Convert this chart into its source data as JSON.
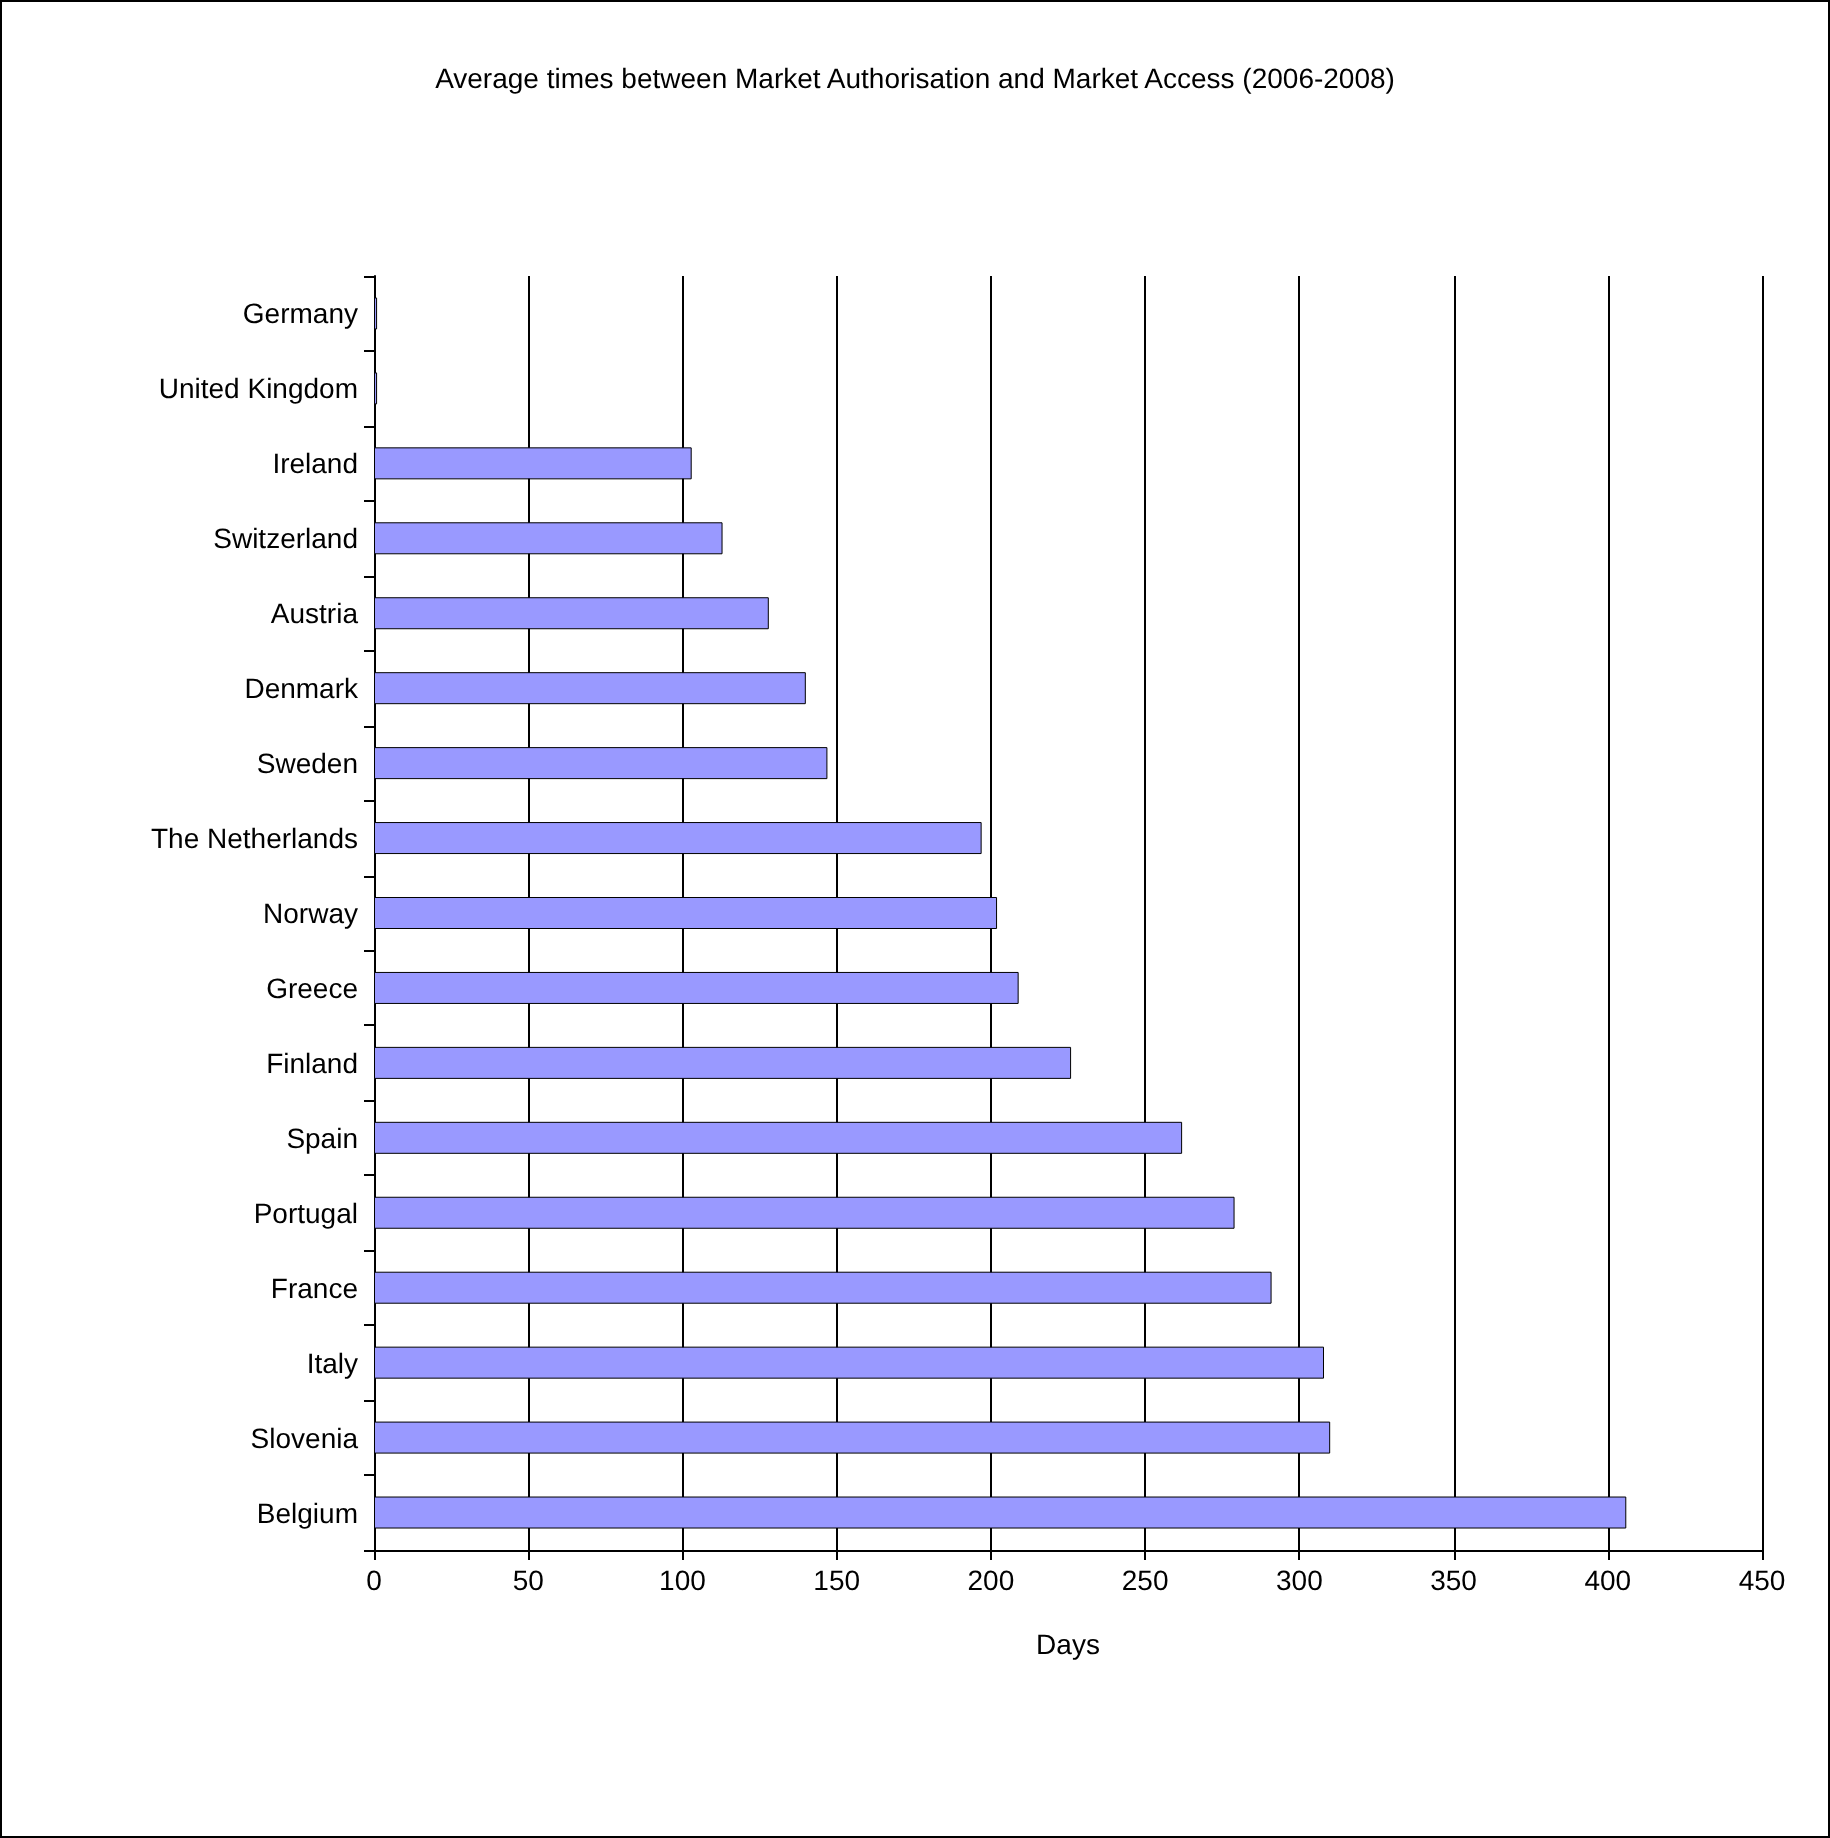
{
  "chart_data": {
    "type": "bar",
    "orientation": "horizontal",
    "title": "Average times between Market Authorisation and Market Access (2006-2008)",
    "xlabel": "Days",
    "categories": [
      "Germany",
      "United Kingdom",
      "Ireland",
      "Switzerland",
      "Austria",
      "Denmark",
      "Sweden",
      "The Netherlands",
      "Norway",
      "Greece",
      "Finland",
      "Spain",
      "Portugal",
      "France",
      "Italy",
      "Slovenia",
      "Belgium"
    ],
    "values": [
      1,
      1,
      103,
      113,
      128,
      140,
      147,
      197,
      202,
      209,
      226,
      262,
      279,
      291,
      308,
      310,
      406
    ],
    "color": "#9999ff",
    "xlim": [
      0,
      450
    ],
    "xticks": [
      0,
      50,
      100,
      150,
      200,
      250,
      300,
      350,
      400,
      450
    ],
    "grid": "x"
  }
}
